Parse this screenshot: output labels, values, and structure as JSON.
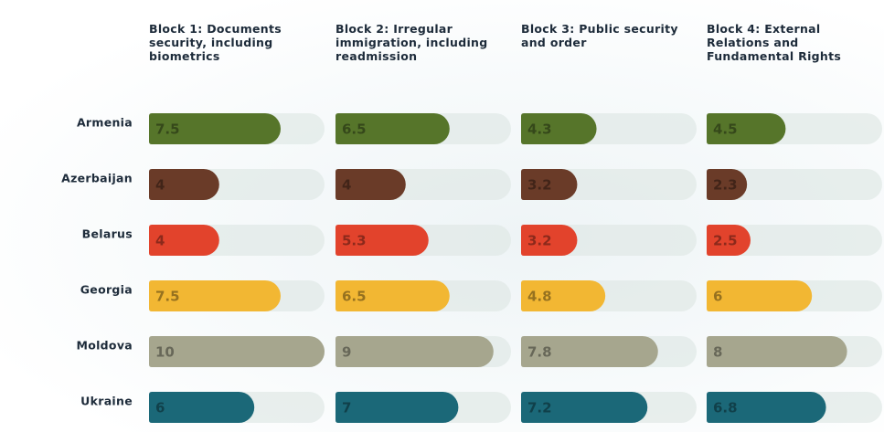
{
  "chart_data": {
    "type": "bar",
    "categories": [
      "Armenia",
      "Azerbaijan",
      "Belarus",
      "Georgia",
      "Moldova",
      "Ukraine"
    ],
    "colors": [
      "#56752a",
      "#6a3b28",
      "#e2432c",
      "#f2b733",
      "#a6a68e",
      "#1b6878"
    ],
    "xlim": [
      0,
      10
    ],
    "series": [
      {
        "name": "Block 1: Documents security, including biometrics",
        "values": [
          7.5,
          4,
          4,
          7.5,
          10,
          6
        ]
      },
      {
        "name": "Block 2: Irregular immigration, including readmission",
        "values": [
          6.5,
          4,
          5.3,
          6.5,
          9,
          7
        ]
      },
      {
        "name": "Block 3: Public security and order",
        "values": [
          4.3,
          3.2,
          3.2,
          4.8,
          7.8,
          7.2
        ]
      },
      {
        "name": "Block 4: External Relations and Fundamental Rights",
        "values": [
          4.5,
          2.3,
          2.5,
          6,
          8,
          6.8
        ]
      }
    ]
  }
}
